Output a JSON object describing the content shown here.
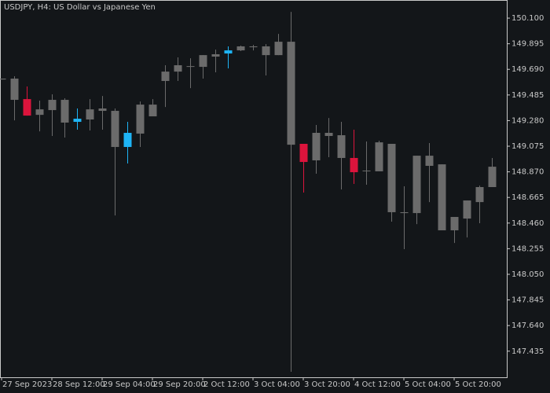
{
  "chart_data": {
    "type": "candlestick",
    "title": "USDJPY, H4:  US Dollar vs Japanese Yen",
    "categories": [
      "27 Sep 2023",
      null,
      null,
      null,
      "28 Sep 12:00",
      null,
      null,
      null,
      "29 Sep 04:00",
      null,
      null,
      null,
      "29 Sep 20:00",
      null,
      null,
      null,
      "2 Oct 12:00",
      null,
      null,
      null,
      "3 Oct 04:00",
      null,
      null,
      null,
      "3 Oct 20:00",
      null,
      null,
      null,
      "4 Oct 12:00",
      null,
      null,
      null,
      "5 Oct 04:00",
      null,
      null,
      null,
      "5 Oct 20:00",
      null,
      null,
      null
    ],
    "open": [
      149.616,
      149.616,
      149.452,
      149.326,
      149.364,
      149.446,
      149.27,
      149.289,
      149.377,
      149.358,
      149.069,
      149.176,
      149.314,
      149.597,
      149.672,
      149.716,
      149.71,
      149.792,
      149.817,
      149.842,
      149.867,
      149.874,
      149.804,
      149.911,
      149.094,
      148.962,
      149.182,
      149.163,
      148.981,
      148.874,
      148.874,
      149.094,
      148.547,
      148.54,
      148.999,
      148.93,
      148.402,
      148.496,
      148.628,
      148.748
    ],
    "high": [
      149.616,
      149.635,
      149.553,
      149.44,
      149.49,
      149.459,
      149.377,
      149.452,
      149.477,
      149.377,
      149.27,
      149.433,
      149.452,
      149.723,
      149.786,
      149.779,
      149.804,
      149.848,
      149.874,
      149.88,
      149.886,
      149.892,
      149.974,
      150.15,
      149.094,
      149.245,
      149.301,
      149.27,
      149.207,
      149.113,
      149.119,
      149.094,
      148.754,
      148.999,
      149.1,
      148.93,
      148.509,
      148.641,
      148.76,
      148.981
    ],
    "low": [
      149.609,
      149.282,
      149.32,
      149.194,
      149.157,
      149.144,
      149.207,
      149.201,
      149.207,
      148.521,
      148.937,
      149.069,
      149.314,
      149.389,
      149.597,
      149.54,
      149.616,
      149.666,
      149.698,
      149.836,
      149.842,
      149.641,
      149.804,
      147.27,
      148.704,
      148.855,
      148.987,
      148.729,
      148.773,
      148.767,
      148.874,
      148.471,
      148.251,
      148.452,
      148.628,
      148.402,
      148.301,
      148.345,
      148.459,
      148.748
    ],
    "close": [
      149.609,
      149.446,
      149.32,
      149.37,
      149.446,
      149.264,
      149.295,
      149.37,
      149.358,
      149.069,
      149.182,
      149.408,
      149.408,
      149.672,
      149.723,
      149.71,
      149.804,
      149.811,
      149.842,
      149.874,
      149.874,
      149.804,
      149.911,
      149.087,
      148.949,
      149.182,
      149.157,
      148.981,
      148.867,
      148.88,
      149.106,
      148.547,
      148.54,
      148.999,
      148.918,
      148.402,
      148.509,
      148.641,
      148.748,
      148.911
    ],
    "colors": [
      "#6b6b6b",
      "#6b6b6b",
      "#dc143c",
      "#6b6b6b",
      "#6b6b6b",
      "#6b6b6b",
      "#1eb4f5",
      "#6b6b6b",
      "#6b6b6b",
      "#6b6b6b",
      "#1eb4f5",
      "#6b6b6b",
      "#6b6b6b",
      "#6b6b6b",
      "#6b6b6b",
      "#6b6b6b",
      "#6b6b6b",
      "#6b6b6b",
      "#1eb4f5",
      "#6b6b6b",
      "#6b6b6b",
      "#6b6b6b",
      "#6b6b6b",
      "#6b6b6b",
      "#dc143c",
      "#6b6b6b",
      "#6b6b6b",
      "#6b6b6b",
      "#dc143c",
      "#6b6b6b",
      "#6b6b6b",
      "#6b6b6b",
      "#6b6b6b",
      "#6b6b6b",
      "#6b6b6b",
      "#6b6b6b",
      "#6b6b6b",
      "#6b6b6b",
      "#6b6b6b",
      "#6b6b6b"
    ],
    "ylim": [
      147.226,
      150.245
    ],
    "yticks": [
      {
        "value": 150.1,
        "label": "150.100"
      },
      149.895,
      {
        "value": 149.69,
        "label": "149.690"
      },
      149.485,
      {
        "value": 149.28,
        "label": "149.280"
      },
      149.075,
      {
        "value": 148.87,
        "label": "148.870"
      },
      148.665,
      {
        "value": 148.46,
        "label": "148.460"
      },
      148.255,
      {
        "value": 148.05,
        "label": "148.050"
      },
      147.845,
      {
        "value": 147.64,
        "label": "147.640"
      },
      147.435
    ]
  }
}
